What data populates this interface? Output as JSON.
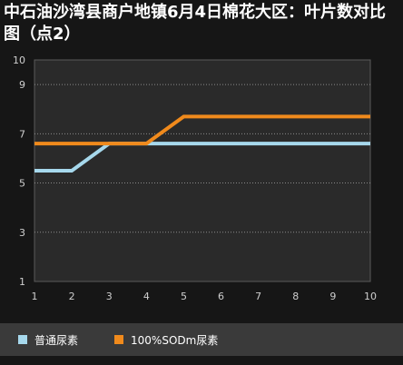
{
  "title": "中石油沙湾县商户地镇6月4日棉花大区：叶片数对比图（点2）",
  "colors": {
    "background": "#161616",
    "plot_background": "#2a2a2a",
    "grid": "#8a8a8a",
    "axis_text": "#cfcfcf",
    "legend_band": "#3a3a3a"
  },
  "chart_data": {
    "type": "line",
    "title": "中石油沙湾县商户地镇6月4日棉花大区：叶片数对比图（点2）",
    "xlabel": "",
    "ylabel": "",
    "x": [
      1,
      2,
      3,
      4,
      5,
      6,
      7,
      8,
      9,
      10
    ],
    "xticks": [
      "1",
      "2",
      "3",
      "4",
      "5",
      "6",
      "7",
      "8",
      "9",
      "10"
    ],
    "yticks": [
      "1",
      "3",
      "5",
      "7",
      "9",
      "10"
    ],
    "ylim": [
      1,
      10
    ],
    "xlim": [
      1,
      10
    ],
    "grid": "horizontal dotted",
    "legend_position": "bottom",
    "series": [
      {
        "name": "普通尿素",
        "color": "#a6d8ec",
        "values": [
          5.5,
          5.5,
          6.6,
          6.6,
          6.6,
          6.6,
          6.6,
          6.6,
          6.6,
          6.6
        ]
      },
      {
        "name": "100%SODm尿素",
        "color": "#f08a1c",
        "values": [
          6.6,
          6.6,
          6.6,
          6.6,
          7.7,
          7.7,
          7.7,
          7.7,
          7.7,
          7.7
        ]
      }
    ]
  }
}
